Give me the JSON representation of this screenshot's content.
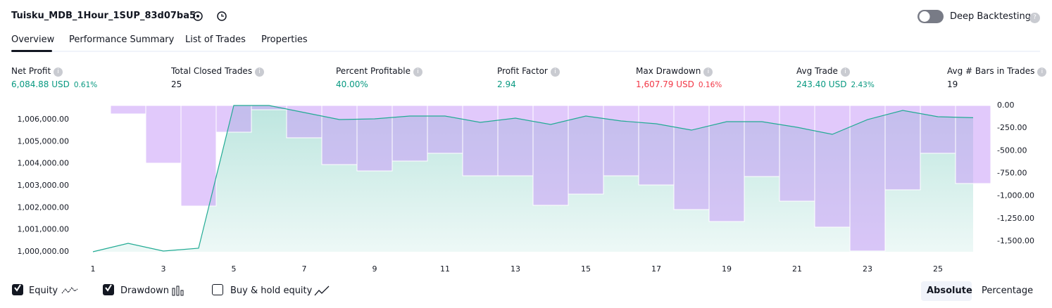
{
  "header": {
    "title": "Tuisku_MDB_1Hour_1SUP_83d07ba5",
    "deep_backtesting": "Deep Backtesting"
  },
  "tabs": [
    "Overview",
    "Performance Summary",
    "List of Trades",
    "Properties"
  ],
  "metrics": [
    {
      "label": "Net Profit",
      "value": "6,084.88 USD",
      "percent": "0.61%"
    },
    {
      "label": "Total Closed Trades",
      "value": "25"
    },
    {
      "label": "Percent Profitable",
      "value": "40.00%"
    },
    {
      "label": "Profit Factor",
      "value": "2.94"
    },
    {
      "label": "Max Drawdown",
      "value": "1,607.79 USD",
      "percent": "0.16%"
    },
    {
      "label": "Avg Trade",
      "value": "243.40 USD",
      "percent": "2.43%"
    },
    {
      "label": "Avg # Bars in Trades",
      "value": "19"
    }
  ],
  "chart_data": {
    "type": "equity_drawdown",
    "x": [
      1,
      2,
      3,
      4,
      5,
      6,
      7,
      8,
      9,
      10,
      11,
      12,
      13,
      14,
      15,
      16,
      17,
      18,
      19,
      20,
      21,
      22,
      23,
      24,
      25,
      26
    ],
    "xlim": [
      0.5,
      26.5
    ],
    "xticks": [
      1,
      3,
      5,
      7,
      9,
      11,
      13,
      15,
      17,
      19,
      21,
      23,
      25
    ],
    "series": [
      {
        "name": "Equity",
        "color": "#22ab94",
        "values": [
          1000000,
          1000383,
          1000032,
          1000160,
          1006640,
          1006640,
          1006320,
          1006001,
          1006033,
          1006161,
          1006161,
          1005873,
          1006065,
          1005778,
          1006161,
          1005937,
          1005810,
          1005522,
          1005905,
          1005905,
          1005650,
          1005331,
          1006001,
          1006416,
          1006129,
          1006084.88
        ]
      },
      {
        "name": "Drawdown",
        "color": "#c89cf8",
        "axis": "y2",
        "values": [
          0,
          -93,
          -637,
          -1111,
          -295,
          -47,
          -357,
          -653,
          -723,
          -614,
          -528,
          -777,
          -777,
          -1103,
          -979,
          -777,
          -878,
          -1150,
          -1282,
          -785,
          -1057,
          -1344,
          -1607.79,
          -932,
          -528,
          -862
        ]
      }
    ],
    "ylim": [
      1000000,
      1006640
    ],
    "yticks": [
      {
        "value": 1000000,
        "label": "1,000,000.00"
      },
      {
        "value": 1001000,
        "label": "1,001,000.00"
      },
      {
        "value": 1002000,
        "label": "1,002,000.00"
      },
      {
        "value": 1003000,
        "label": "1,003,000.00"
      },
      {
        "value": 1004000,
        "label": "1,004,000.00"
      },
      {
        "value": 1005000,
        "label": "1,005,000.00"
      },
      {
        "value": 1006000,
        "label": "1,006,000.00"
      }
    ],
    "y2lim": [
      -1616,
      0
    ],
    "y2ticks": [
      {
        "value": 0,
        "label": "0.00"
      },
      {
        "value": -250,
        "label": "-250.00"
      },
      {
        "value": -500,
        "label": "-500.00"
      },
      {
        "value": -750,
        "label": "-750.00"
      },
      {
        "value": -1000,
        "label": "-1,000.00"
      },
      {
        "value": -1250,
        "label": "-1,250.00"
      },
      {
        "value": -1500,
        "label": "-1,500.00"
      }
    ],
    "grid": false
  },
  "controls": {
    "buy_hold": "Buy & hold equity",
    "absolute": "Absolute",
    "percentage": "Percentage"
  }
}
